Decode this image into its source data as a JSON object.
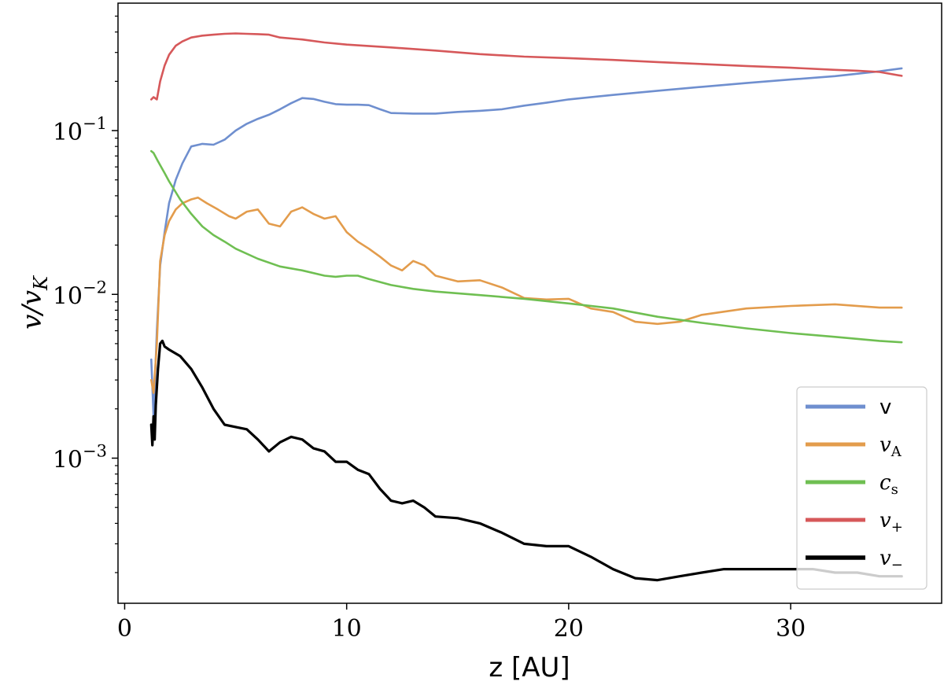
{
  "chart_data": {
    "type": "line",
    "xlabel": "z [AU]",
    "ylabel": {
      "base": "v/v",
      "sub": "K"
    },
    "xlim": [
      -0.3,
      36.8
    ],
    "ylim": [
      0.00013,
      0.6
    ],
    "yscale": "log",
    "grid": false,
    "legend_position": "bottom-right",
    "xticks": [
      {
        "value": 0,
        "label": "0"
      },
      {
        "value": 10,
        "label": "10"
      },
      {
        "value": 20,
        "label": "20"
      },
      {
        "value": 30,
        "label": "30"
      }
    ],
    "yticks": [
      {
        "value": 0.001,
        "base": "10",
        "exp": "−3"
      },
      {
        "value": 0.01,
        "base": "10",
        "exp": "−2"
      },
      {
        "value": 0.1,
        "base": "10",
        "exp": "−1"
      }
    ],
    "series": [
      {
        "name": "v",
        "name_sub": "",
        "style": "upright",
        "color": "#6f8fcf",
        "x": [
          1.2,
          1.3,
          1.45,
          1.6,
          1.8,
          2.0,
          2.3,
          2.6,
          3.0,
          3.5,
          4.0,
          4.5,
          5.0,
          5.5,
          6.0,
          6.5,
          7.0,
          7.5,
          8.0,
          8.5,
          9.0,
          9.5,
          10.0,
          10.5,
          11.0,
          11.5,
          12.0,
          13.0,
          14.0,
          15.0,
          16.0,
          17.0,
          18.0,
          19.0,
          20.0,
          22.0,
          24.0,
          26.0,
          28.0,
          30.0,
          32.0,
          34.0,
          35.0
        ],
        "y": [
          0.004,
          0.0018,
          0.006,
          0.015,
          0.024,
          0.036,
          0.05,
          0.063,
          0.08,
          0.083,
          0.082,
          0.088,
          0.1,
          0.11,
          0.118,
          0.125,
          0.135,
          0.147,
          0.158,
          0.156,
          0.15,
          0.145,
          0.144,
          0.144,
          0.143,
          0.135,
          0.128,
          0.127,
          0.127,
          0.13,
          0.132,
          0.135,
          0.142,
          0.148,
          0.155,
          0.165,
          0.175,
          0.185,
          0.195,
          0.205,
          0.215,
          0.23,
          0.24
        ]
      },
      {
        "name": "v",
        "name_sub": "A",
        "style": "math",
        "color": "#e39c4c",
        "x": [
          1.2,
          1.3,
          1.45,
          1.6,
          1.8,
          2.0,
          2.3,
          2.6,
          3.0,
          3.3,
          3.7,
          4.2,
          4.7,
          5.0,
          5.5,
          6.0,
          6.5,
          7.0,
          7.5,
          8.0,
          8.5,
          9.0,
          9.5,
          10.0,
          10.5,
          11.0,
          11.5,
          12.0,
          12.5,
          13.0,
          13.5,
          14.0,
          15.0,
          16.0,
          17.0,
          18.0,
          19.0,
          20.0,
          21.0,
          22.0,
          23.0,
          24.0,
          25.0,
          26.0,
          28.0,
          30.0,
          32.0,
          34.0,
          35.0
        ],
        "y": [
          0.003,
          0.0025,
          0.005,
          0.016,
          0.023,
          0.028,
          0.033,
          0.036,
          0.038,
          0.039,
          0.036,
          0.033,
          0.03,
          0.029,
          0.032,
          0.033,
          0.027,
          0.026,
          0.032,
          0.034,
          0.031,
          0.029,
          0.03,
          0.024,
          0.021,
          0.019,
          0.017,
          0.015,
          0.014,
          0.016,
          0.015,
          0.013,
          0.012,
          0.0122,
          0.011,
          0.0095,
          0.0093,
          0.0094,
          0.0082,
          0.0078,
          0.0068,
          0.0066,
          0.0068,
          0.0075,
          0.0082,
          0.0085,
          0.0087,
          0.0083,
          0.0083
        ]
      },
      {
        "name": "c",
        "name_sub": "s",
        "style": "math",
        "color": "#6fbf52",
        "x": [
          1.2,
          1.3,
          1.5,
          1.8,
          2.0,
          2.5,
          3.0,
          3.5,
          4.0,
          4.5,
          5.0,
          6.0,
          7.0,
          8.0,
          9.0,
          9.5,
          10.0,
          10.5,
          11.0,
          12.0,
          13.0,
          14.0,
          16.0,
          18.0,
          20.0,
          22.0,
          24.0,
          26.0,
          28.0,
          30.0,
          32.0,
          34.0,
          35.0
        ],
        "y": [
          0.075,
          0.073,
          0.065,
          0.055,
          0.049,
          0.038,
          0.031,
          0.026,
          0.023,
          0.021,
          0.019,
          0.0165,
          0.0148,
          0.014,
          0.013,
          0.0128,
          0.013,
          0.013,
          0.0124,
          0.0114,
          0.0108,
          0.0104,
          0.0099,
          0.0094,
          0.0088,
          0.0082,
          0.0073,
          0.0067,
          0.0062,
          0.0058,
          0.0055,
          0.0052,
          0.0051
        ]
      },
      {
        "name": "v",
        "name_sub": "+",
        "style": "math",
        "color": "#d6585a",
        "x": [
          1.2,
          1.3,
          1.45,
          1.6,
          1.8,
          2.0,
          2.3,
          2.6,
          3.0,
          3.5,
          4.0,
          4.5,
          5.0,
          5.5,
          6.0,
          6.5,
          7.0,
          8.0,
          9.0,
          10.0,
          12.0,
          14.0,
          16.0,
          18.0,
          20.0,
          22.0,
          24.0,
          26.0,
          28.0,
          30.0,
          32.0,
          33.0,
          34.0,
          35.0
        ],
        "y": [
          0.155,
          0.16,
          0.155,
          0.2,
          0.25,
          0.29,
          0.33,
          0.35,
          0.37,
          0.38,
          0.385,
          0.39,
          0.392,
          0.39,
          0.388,
          0.385,
          0.37,
          0.36,
          0.345,
          0.335,
          0.322,
          0.308,
          0.293,
          0.283,
          0.277,
          0.27,
          0.262,
          0.255,
          0.248,
          0.242,
          0.235,
          0.232,
          0.228,
          0.216
        ]
      },
      {
        "name": "v",
        "name_sub": "−",
        "style": "math",
        "color": "#000000",
        "x": [
          1.2,
          1.25,
          1.3,
          1.35,
          1.4,
          1.5,
          1.6,
          1.7,
          1.8,
          2.0,
          2.5,
          3.0,
          3.5,
          4.0,
          4.5,
          5.0,
          5.5,
          6.0,
          6.5,
          7.0,
          7.5,
          8.0,
          8.5,
          9.0,
          9.5,
          10.0,
          10.5,
          11.0,
          11.5,
          12.0,
          12.5,
          13.0,
          13.5,
          14.0,
          15.0,
          16.0,
          17.0,
          18.0,
          19.0,
          20.0,
          21.0,
          22.0,
          23.0,
          24.0,
          25.0,
          26.0,
          27.0,
          28.0,
          29.0,
          30.0,
          31.0,
          32.0,
          33.0,
          34.0,
          35.0
        ],
        "y": [
          0.0016,
          0.0012,
          0.0018,
          0.0013,
          0.0021,
          0.0035,
          0.005,
          0.0052,
          0.0048,
          0.0046,
          0.0042,
          0.0035,
          0.0027,
          0.002,
          0.0016,
          0.00155,
          0.0015,
          0.0013,
          0.0011,
          0.00125,
          0.00135,
          0.0013,
          0.00115,
          0.0011,
          0.00095,
          0.00095,
          0.00085,
          0.0008,
          0.00065,
          0.00055,
          0.00053,
          0.00055,
          0.0005,
          0.00044,
          0.00043,
          0.0004,
          0.00035,
          0.0003,
          0.00029,
          0.00029,
          0.00025,
          0.00021,
          0.000185,
          0.00018,
          0.00019,
          0.0002,
          0.00021,
          0.00021,
          0.00021,
          0.00021,
          0.00021,
          0.0002,
          0.0002,
          0.00019,
          0.00019
        ]
      }
    ]
  }
}
